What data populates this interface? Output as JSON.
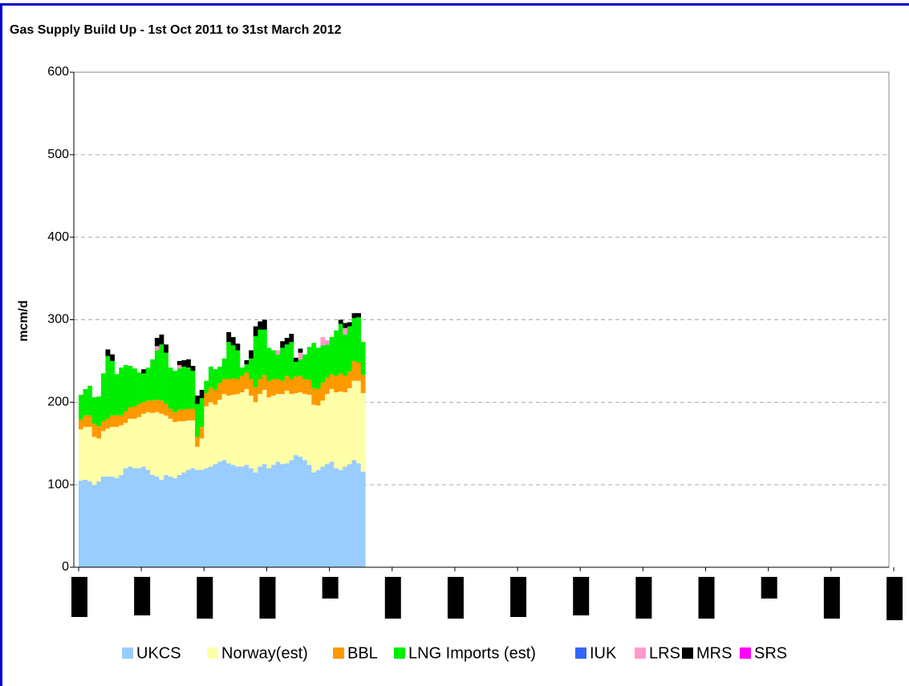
{
  "chart_data": {
    "type": "stacked-bar",
    "title": "Gas Supply Build Up - 1st Oct 2011 to 31st March 2012",
    "y_label": "mcm/d",
    "categories": [
      null,
      null,
      null,
      null,
      null,
      null,
      null,
      null,
      null,
      null,
      null,
      null,
      null,
      null,
      null,
      null,
      null,
      null,
      null,
      null,
      null,
      null,
      null,
      null,
      null,
      null,
      null,
      null,
      null,
      null,
      null,
      null,
      null,
      null,
      null,
      null,
      null,
      null,
      null,
      null,
      null,
      null,
      null,
      null,
      null,
      null,
      null,
      null,
      null,
      null,
      null,
      null,
      null,
      null,
      null,
      null,
      null,
      null,
      null,
      null,
      null,
      null,
      null,
      null
    ],
    "ylim": [
      0,
      600
    ],
    "yticks": [
      0,
      100,
      200,
      300,
      400,
      500,
      600
    ],
    "grid": true,
    "legend": "bottom",
    "series": [
      {
        "name": "UKCS",
        "color": "#99ccff",
        "values": [
          105,
          106,
          104,
          100,
          104,
          110,
          110,
          110,
          108,
          112,
          120,
          122,
          120,
          120,
          122,
          118,
          112,
          110,
          106,
          112,
          110,
          108,
          112,
          115,
          118,
          120,
          118,
          118,
          120,
          122,
          125,
          128,
          130,
          126,
          124,
          122,
          122,
          124,
          120,
          115,
          122,
          125,
          120,
          124,
          128,
          125,
          126,
          130,
          136,
          134,
          130,
          124,
          115,
          118,
          122,
          125,
          128,
          120,
          118,
          122,
          125,
          130,
          126,
          116
        ]
      },
      {
        "name": "Norway(est)",
        "color": "#ffffa8",
        "values": [
          62,
          64,
          66,
          58,
          52,
          55,
          58,
          60,
          62,
          60,
          55,
          58,
          60,
          62,
          64,
          70,
          75,
          78,
          80,
          72,
          70,
          68,
          65,
          62,
          60,
          58,
          28,
          38,
          75,
          78,
          72,
          75,
          80,
          82,
          85,
          88,
          90,
          92,
          88,
          85,
          88,
          90,
          86,
          84,
          82,
          85,
          88,
          80,
          75,
          78,
          80,
          85,
          82,
          78,
          80,
          85,
          88,
          92,
          95,
          90,
          92,
          96,
          100,
          95
        ]
      },
      {
        "name": "BBL",
        "color": "#ff9900",
        "values": [
          12,
          14,
          14,
          16,
          15,
          12,
          12,
          14,
          14,
          12,
          14,
          14,
          15,
          16,
          14,
          14,
          15,
          15,
          16,
          14,
          12,
          12,
          14,
          14,
          14,
          14,
          12,
          14,
          16,
          18,
          18,
          20,
          18,
          20,
          20,
          18,
          20,
          20,
          20,
          18,
          18,
          18,
          20,
          20,
          18,
          16,
          18,
          18,
          20,
          20,
          18,
          18,
          20,
          20,
          22,
          20,
          18,
          20,
          22,
          20,
          20,
          24,
          22,
          22
        ]
      },
      {
        "name": "LNG Imports (est)",
        "color": "#00ee00",
        "values": [
          30,
          32,
          36,
          32,
          36,
          58,
          76,
          66,
          50,
          58,
          56,
          50,
          46,
          38,
          35,
          40,
          50,
          60,
          68,
          62,
          50,
          50,
          50,
          52,
          50,
          46,
          40,
          35,
          15,
          25,
          25,
          20,
          25,
          45,
          40,
          35,
          10,
          10,
          25,
          62,
          60,
          55,
          40,
          35,
          30,
          40,
          38,
          45,
          18,
          20,
          30,
          40,
          55,
          50,
          45,
          40,
          45,
          55,
          60,
          50,
          55,
          52,
          55,
          40
        ]
      },
      {
        "name": "IUK",
        "color": "#3366ff",
        "values": [
          0,
          0,
          0,
          0,
          0,
          0,
          0,
          0,
          0,
          0,
          0,
          0,
          0,
          0,
          0,
          0,
          0,
          0,
          0,
          0,
          0,
          0,
          0,
          0,
          0,
          0,
          0,
          0,
          0,
          0,
          0,
          0,
          0,
          0,
          0,
          0,
          0,
          0,
          0,
          0,
          0,
          0,
          0,
          0,
          0,
          0,
          0,
          0,
          0,
          0,
          0,
          0,
          0,
          0,
          0,
          0,
          0,
          0,
          0,
          0,
          0,
          0,
          0,
          0
        ]
      },
      {
        "name": "LRS",
        "color": "#ff99cc",
        "values": [
          0,
          0,
          0,
          0,
          0,
          0,
          0,
          0,
          0,
          0,
          0,
          0,
          0,
          0,
          0,
          0,
          0,
          5,
          0,
          0,
          0,
          0,
          4,
          0,
          0,
          0,
          0,
          0,
          0,
          0,
          0,
          0,
          0,
          0,
          0,
          0,
          0,
          0,
          0,
          0,
          0,
          0,
          0,
          0,
          5,
          0,
          0,
          0,
          0,
          8,
          0,
          0,
          0,
          0,
          10,
          5,
          0,
          0,
          0,
          8,
          0,
          0,
          0,
          0
        ]
      },
      {
        "name": "MRS",
        "color": "#000000",
        "values": [
          0,
          0,
          0,
          0,
          0,
          0,
          8,
          8,
          0,
          0,
          0,
          0,
          0,
          0,
          5,
          0,
          0,
          10,
          12,
          10,
          0,
          0,
          5,
          8,
          10,
          6,
          10,
          10,
          0,
          0,
          0,
          0,
          0,
          12,
          10,
          8,
          0,
          5,
          10,
          12,
          10,
          12,
          0,
          0,
          0,
          8,
          8,
          10,
          5,
          5,
          0,
          0,
          0,
          0,
          0,
          0,
          0,
          0,
          5,
          6,
          5,
          6,
          5,
          0
        ]
      },
      {
        "name": "SRS",
        "color": "#ff00ff",
        "values": [
          0,
          0,
          0,
          0,
          0,
          0,
          0,
          0,
          0,
          0,
          0,
          0,
          0,
          0,
          0,
          0,
          0,
          0,
          0,
          0,
          0,
          0,
          0,
          0,
          0,
          0,
          0,
          0,
          0,
          0,
          0,
          0,
          0,
          0,
          0,
          0,
          0,
          0,
          0,
          0,
          0,
          0,
          0,
          0,
          0,
          0,
          0,
          0,
          0,
          0,
          0,
          0,
          0,
          0,
          0,
          0,
          0,
          0,
          0,
          0,
          0,
          0,
          0,
          0
        ]
      }
    ]
  }
}
